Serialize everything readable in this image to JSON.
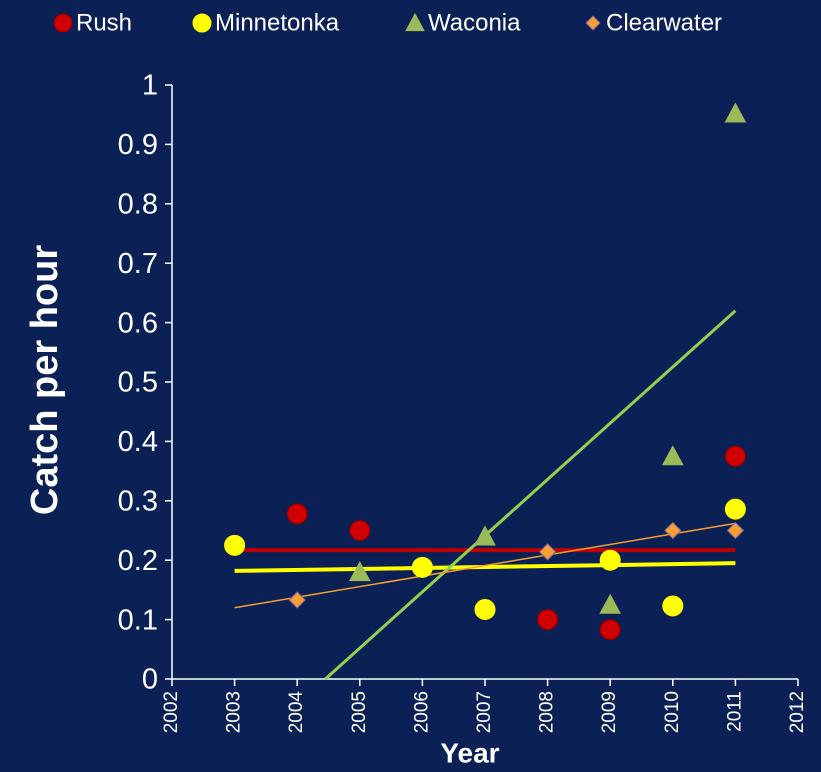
{
  "chart_data": {
    "type": "scatter",
    "xlabel": "Year",
    "ylabel": "Catch per hour",
    "xlim": [
      2002,
      2012
    ],
    "xticks": [
      2002,
      2003,
      2004,
      2005,
      2006,
      2007,
      2008,
      2009,
      2010,
      2011,
      2012
    ],
    "ylim": [
      0,
      1
    ],
    "yticks": [
      0,
      0.1,
      0.2,
      0.3,
      0.4,
      0.5,
      0.6,
      0.7,
      0.8,
      0.9,
      1
    ],
    "legend": "top",
    "series": [
      {
        "name": "Rush",
        "color": "#d00000",
        "marker": "circle",
        "x": [
          2004,
          2005,
          2008,
          2009,
          2011
        ],
        "values": [
          0.278,
          0.25,
          0.1,
          0.083,
          0.375
        ],
        "trendline": {
          "color": "#c00000",
          "x": [
            2003,
            2011
          ],
          "values": [
            0.217,
            0.217
          ]
        }
      },
      {
        "name": "Minnetonka",
        "color": "#ffff00",
        "marker": "circle",
        "x": [
          2003,
          2006,
          2007,
          2009,
          2010,
          2011
        ],
        "values": [
          0.225,
          0.188,
          0.117,
          0.2,
          0.123,
          0.286
        ],
        "trendline": {
          "color": "#ffff00",
          "x": [
            2003,
            2011
          ],
          "values": [
            0.182,
            0.195
          ]
        }
      },
      {
        "name": "Waconia",
        "color": "#9bbb59",
        "marker": "triangle",
        "x": [
          2005,
          2007,
          2009,
          2010,
          2011
        ],
        "values": [
          0.18,
          0.24,
          0.125,
          0.375,
          0.952
        ],
        "trendline": {
          "color": "#92d050",
          "x": [
            2004.45,
            2011
          ],
          "values": [
            0,
            0.62
          ]
        }
      },
      {
        "name": "Clearwater",
        "color": "#f5a030",
        "marker": "diamond",
        "x": [
          2004,
          2008,
          2010,
          2011
        ],
        "values": [
          0.133,
          0.214,
          0.25,
          0.25
        ],
        "trendline": {
          "color": "#f5a030",
          "x": [
            2003,
            2011
          ],
          "values": [
            0.12,
            0.262
          ]
        }
      }
    ]
  }
}
